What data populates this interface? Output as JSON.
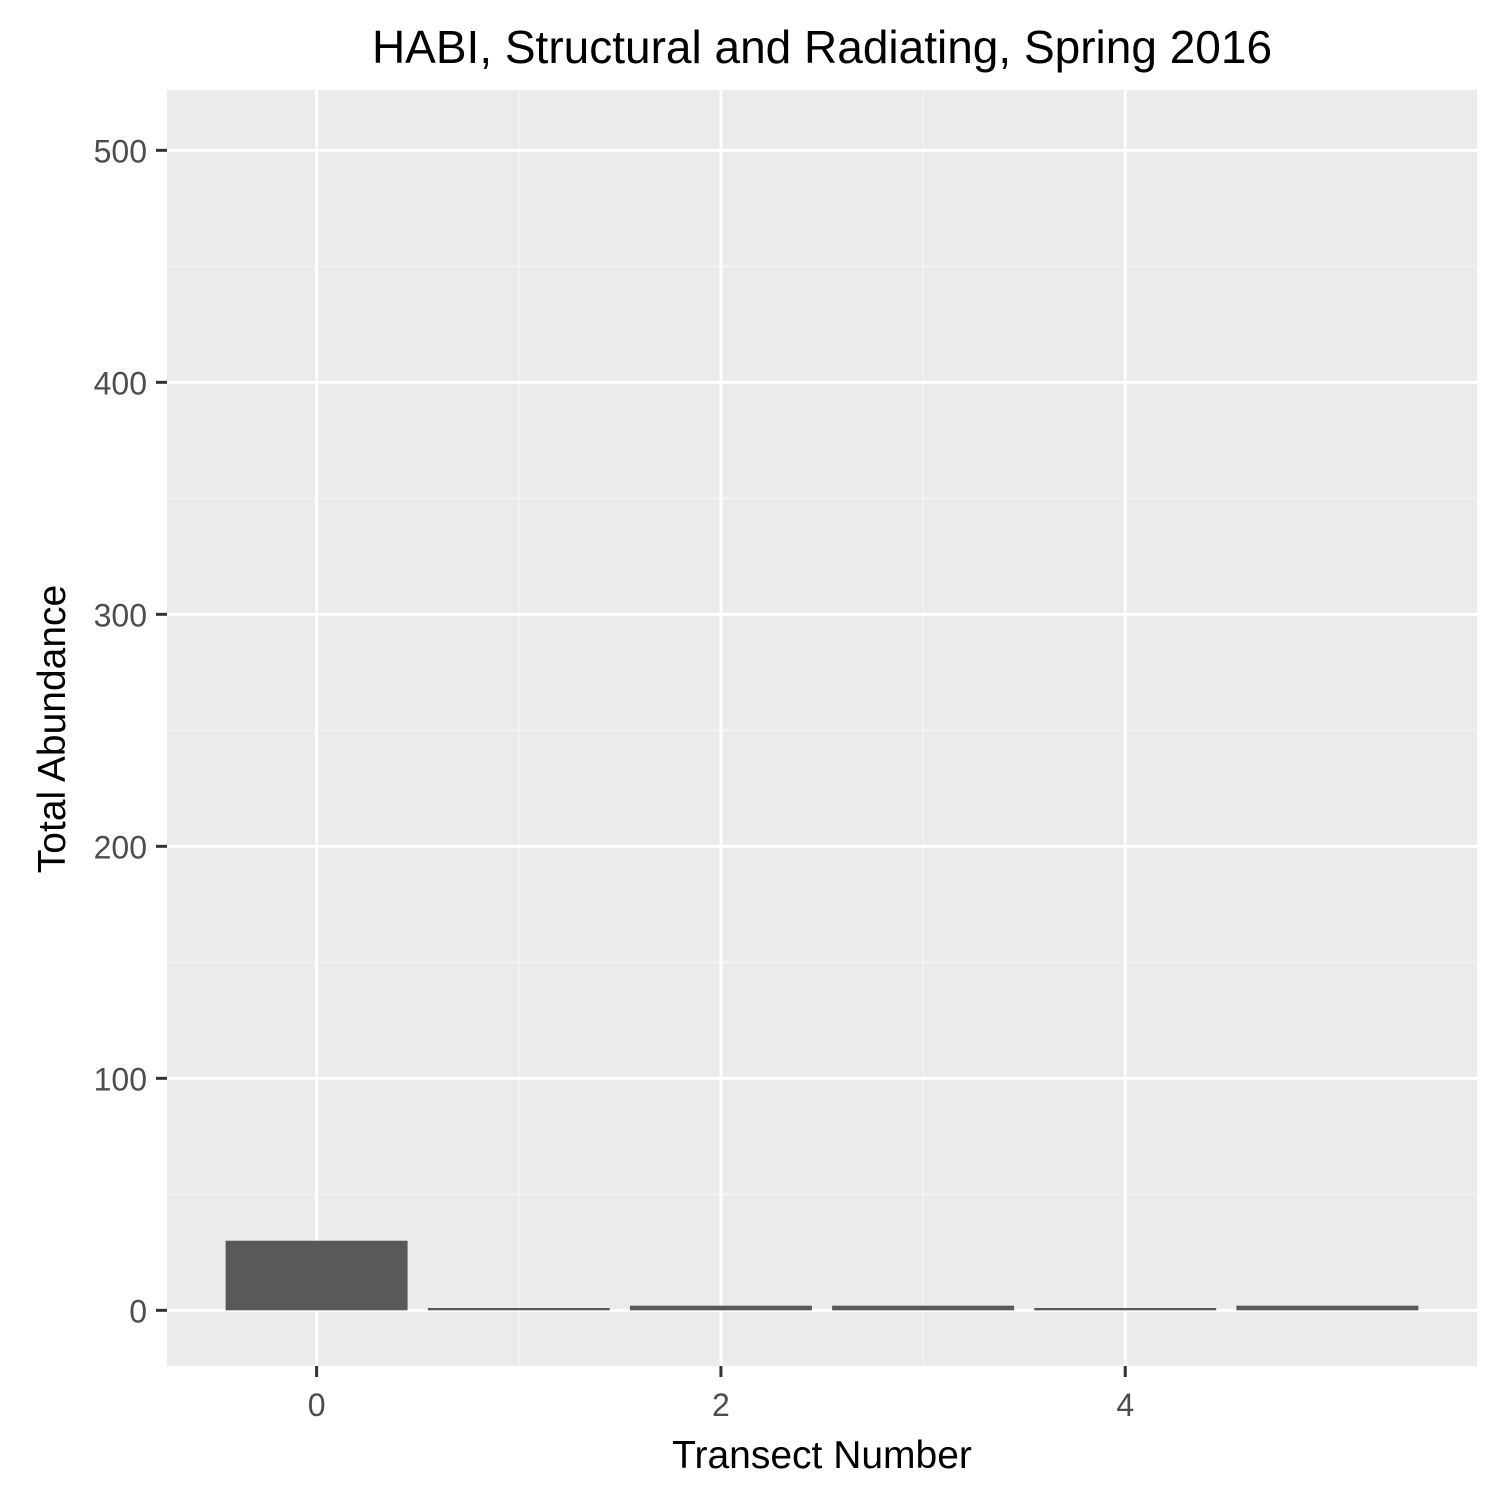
{
  "chart_data": {
    "type": "bar",
    "title": "HABI, Structural and Radiating, Spring 2016",
    "xlabel": "Transect Number",
    "ylabel": "Total Abundance",
    "x": [
      0,
      1,
      2,
      3,
      4,
      5
    ],
    "values": [
      30,
      1,
      2,
      2,
      1,
      2
    ],
    "xlim": [
      -0.74,
      5.74
    ],
    "ylim": [
      -24,
      526
    ],
    "x_ticks": [
      0,
      2,
      4
    ],
    "x_tick_labels": [
      "0",
      "2",
      "4"
    ],
    "y_ticks": [
      0,
      100,
      200,
      300,
      400,
      500
    ],
    "y_tick_labels": [
      "0",
      "100",
      "200",
      "300",
      "400",
      "500"
    ],
    "grid": true,
    "legend": "none"
  },
  "colors": {
    "panel_background": "#EBEBEB",
    "grid_major": "#FFFFFF",
    "grid_minor": "#F4F4F4",
    "bar_fill": "#595959",
    "axis_text": "#4D4D4D",
    "title_text": "#000000",
    "tick_mark": "#333333"
  }
}
